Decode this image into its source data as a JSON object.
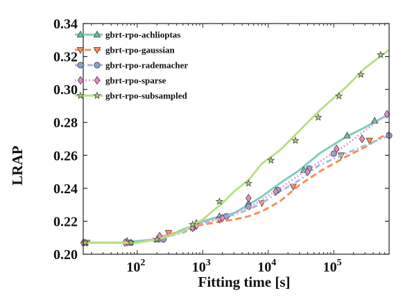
{
  "chart_data": {
    "type": "line",
    "title": "",
    "xlabel": "Fitting time [s]",
    "ylabel": "LRAP",
    "xscale": "log",
    "xlim": [
      15,
      700000
    ],
    "ylim": [
      0.2,
      0.34
    ],
    "grid": false,
    "legend_position": "top-left",
    "x_ticks": [
      {
        "value": 100,
        "base": "10",
        "exp": "2"
      },
      {
        "value": 1000,
        "base": "10",
        "exp": "3"
      },
      {
        "value": 10000,
        "base": "10",
        "exp": "4"
      },
      {
        "value": 100000,
        "base": "10",
        "exp": "5"
      }
    ],
    "y_ticks": [
      {
        "value": 0.2,
        "label": "0.20"
      },
      {
        "value": 0.22,
        "label": "0.22"
      },
      {
        "value": 0.24,
        "label": "0.24"
      },
      {
        "value": 0.26,
        "label": "0.26"
      },
      {
        "value": 0.28,
        "label": "0.28"
      },
      {
        "value": 0.3,
        "label": "0.30"
      },
      {
        "value": 0.32,
        "label": "0.32"
      },
      {
        "value": 0.34,
        "label": "0.34"
      }
    ],
    "series": [
      {
        "name": "gbrt-rpo-achlioptas",
        "color": "#7fcdbb",
        "marker_color": "#66c2a4",
        "dash": "solid",
        "marker": "triangle-up",
        "x": [
          15,
          30,
          60,
          100,
          200,
          300,
          500,
          800,
          1000,
          1500,
          2000,
          3000,
          5000,
          8000,
          15000,
          30000,
          60000,
          150000,
          300000,
          700000
        ],
        "y": [
          0.207,
          0.207,
          0.207,
          0.208,
          0.209,
          0.211,
          0.215,
          0.218,
          0.22,
          0.222,
          0.223,
          0.225,
          0.23,
          0.235,
          0.243,
          0.251,
          0.261,
          0.271,
          0.277,
          0.285
        ],
        "marker_x": [
          16,
          70,
          200,
          800,
          1800,
          5000,
          35000,
          160000,
          420000
        ],
        "marker_y": [
          0.207,
          0.208,
          0.209,
          0.219,
          0.223,
          0.231,
          0.251,
          0.272,
          0.281
        ]
      },
      {
        "name": "gbrt-rpo-gaussian",
        "color": "#fc8d59",
        "marker_color": "#fc8d59",
        "dash": "dashed",
        "marker": "triangle-down",
        "x": [
          15,
          30,
          60,
          100,
          200,
          300,
          500,
          800,
          1000,
          2000,
          3000,
          5000,
          8000,
          15000,
          30000,
          60000,
          150000,
          300000,
          700000
        ],
        "y": [
          0.207,
          0.207,
          0.207,
          0.207,
          0.209,
          0.212,
          0.214,
          0.217,
          0.218,
          0.22,
          0.221,
          0.223,
          0.226,
          0.232,
          0.242,
          0.25,
          0.259,
          0.265,
          0.274
        ],
        "marker_x": [
          17,
          70,
          300,
          800,
          1800,
          8000,
          24000,
          130000,
          350000
        ],
        "marker_y": [
          0.207,
          0.207,
          0.213,
          0.217,
          0.221,
          0.231,
          0.241,
          0.26,
          0.269
        ]
      },
      {
        "name": "gbrt-rpo-rademacher",
        "color": "#a6bddb",
        "marker_color": "#8da0cb",
        "dash": "dashdot",
        "marker": "circle",
        "x": [
          15,
          30,
          60,
          100,
          200,
          300,
          500,
          800,
          1000,
          2000,
          3000,
          5000,
          8000,
          15000,
          30000,
          60000,
          150000,
          300000,
          700000
        ],
        "y": [
          0.207,
          0.207,
          0.207,
          0.207,
          0.209,
          0.211,
          0.213,
          0.217,
          0.219,
          0.222,
          0.224,
          0.227,
          0.231,
          0.238,
          0.245,
          0.254,
          0.261,
          0.266,
          0.272
        ],
        "marker_x": [
          16,
          80,
          250,
          700,
          2300,
          5000,
          14000,
          42000,
          100000,
          700000
        ],
        "marker_y": [
          0.207,
          0.207,
          0.209,
          0.216,
          0.223,
          0.229,
          0.239,
          0.252,
          0.261,
          0.272
        ]
      },
      {
        "name": "gbrt-rpo-sparse",
        "color": "#df9fdf",
        "marker_color": "#e78ac3",
        "dash": "dotted",
        "marker": "diamond",
        "x": [
          15,
          30,
          60,
          100,
          200,
          300,
          500,
          800,
          1000,
          2000,
          3000,
          5000,
          8000,
          15000,
          30000,
          60000,
          150000,
          300000,
          700000
        ],
        "y": [
          0.207,
          0.207,
          0.207,
          0.207,
          0.21,
          0.212,
          0.214,
          0.217,
          0.219,
          0.222,
          0.225,
          0.228,
          0.233,
          0.24,
          0.248,
          0.256,
          0.266,
          0.275,
          0.286
        ],
        "marker_x": [
          15,
          65,
          220,
          700,
          2000,
          5000,
          13000,
          40000,
          110000,
          270000,
          650000
        ],
        "marker_y": [
          0.207,
          0.207,
          0.211,
          0.216,
          0.222,
          0.234,
          0.238,
          0.25,
          0.264,
          0.27,
          0.285
        ]
      },
      {
        "name": "gbrt-rpo-subsampled",
        "color": "#b8e186",
        "marker_color": "#a6d96a",
        "dash": "solid",
        "marker": "star",
        "x": [
          15,
          30,
          60,
          100,
          200,
          300,
          500,
          800,
          1000,
          1500,
          2000,
          3000,
          5000,
          8000,
          15000,
          30000,
          60000,
          150000,
          300000,
          700000
        ],
        "y": [
          0.207,
          0.207,
          0.207,
          0.207,
          0.209,
          0.211,
          0.214,
          0.219,
          0.221,
          0.227,
          0.231,
          0.238,
          0.245,
          0.255,
          0.263,
          0.275,
          0.287,
          0.301,
          0.313,
          0.324
        ],
        "marker_x": [
          16,
          80,
          200,
          700,
          1800,
          5000,
          11000,
          26000,
          58000,
          120000,
          260000,
          520000
        ],
        "marker_y": [
          0.207,
          0.207,
          0.209,
          0.218,
          0.232,
          0.243,
          0.257,
          0.269,
          0.283,
          0.296,
          0.309,
          0.321
        ]
      }
    ]
  }
}
